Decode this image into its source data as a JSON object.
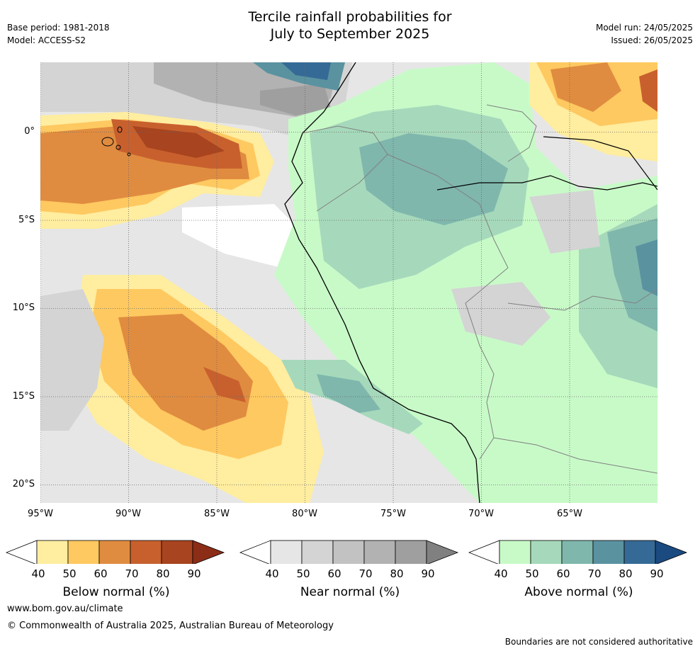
{
  "title": {
    "line1": "Tercile rainfall probabilities for",
    "line2": "July to September 2025"
  },
  "meta": {
    "base_period": "Base period: 1981-2018",
    "model": "Model: ACCESS-S2",
    "model_run": "Model run: 24/05/2025",
    "issued": "Issued: 26/05/2025"
  },
  "axes": {
    "lat_labels": [
      "0°",
      "5°S",
      "10°S",
      "15°S",
      "20°S"
    ],
    "lon_labels": [
      "95°W",
      "90°W",
      "85°W",
      "80°W",
      "75°W",
      "70°W",
      "65°W"
    ]
  },
  "colorbars": [
    {
      "label": "Below normal (%)",
      "ticks": [
        "40",
        "50",
        "60",
        "70",
        "80",
        "90"
      ],
      "colors": [
        "#ffffff",
        "#ffeda0",
        "#fec960",
        "#e08c40",
        "#c8602e",
        "#a8441f",
        "#8c2d17"
      ]
    },
    {
      "label": "Near normal (%)",
      "ticks": [
        "40",
        "50",
        "60",
        "70",
        "80",
        "90"
      ],
      "colors": [
        "#ffffff",
        "#e6e6e6",
        "#d4d4d4",
        "#c2c2c2",
        "#b2b2b2",
        "#9f9f9f",
        "#808080"
      ]
    },
    {
      "label": "Above normal (%)",
      "ticks": [
        "40",
        "50",
        "60",
        "70",
        "80",
        "90"
      ],
      "colors": [
        "#ffffff",
        "#c8fac8",
        "#a6d9bb",
        "#7fb7ad",
        "#5a92a0",
        "#356a96",
        "#1a4a80"
      ]
    }
  ],
  "footer": {
    "website": "www.bom.gov.au/climate",
    "copyright": "© Commonwealth of Australia 2025, Australian Bureau of Meteorology",
    "disclaimer": "Boundaries are not considered authoritative"
  }
}
